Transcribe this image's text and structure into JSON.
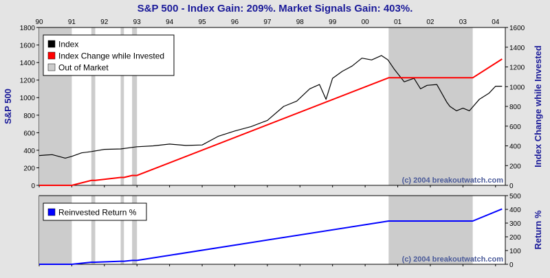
{
  "title": "S&P 500 - Index Gain: 209%. Market Signals Gain: 403%.",
  "watermark": "(c) 2004 breakoutwatch.com",
  "colors": {
    "background": "#e4e4e4",
    "plot": "#ffffff",
    "title": "#1a1a99",
    "axis_label": "#1a1a99",
    "index": "#000000",
    "invested": "#ff0000",
    "out_of_market": "#cccccc",
    "reinvested": "#0000ff",
    "watermark": "#4a5a99"
  },
  "year_ticks": [
    "90",
    "91",
    "92",
    "93",
    "94",
    "95",
    "96",
    "97",
    "98",
    "99",
    "00",
    "01",
    "02",
    "03",
    "04"
  ],
  "chart_data": [
    {
      "type": "line",
      "panel": "top",
      "ylabel_left": "S&P 500",
      "ylabel_right": "Index Change while Invested",
      "ylim_left": [
        0,
        1800
      ],
      "ylim_right": [
        0,
        1600
      ],
      "yticks_left": [
        "0",
        "200",
        "400",
        "600",
        "800",
        "1000",
        "1200",
        "1400",
        "1600",
        "1800"
      ],
      "yticks_right": [
        "0",
        "200",
        "400",
        "600",
        "800",
        "1000",
        "1200",
        "1400",
        "1600"
      ],
      "legend_placement": "top-left",
      "legend": [
        {
          "label": "Index",
          "color": "#000000"
        },
        {
          "label": "Index Change while Invested",
          "color": "#ff0000"
        },
        {
          "label": "Out of Market",
          "color": "#cccccc"
        }
      ],
      "out_of_market_periods": [
        [
          1990.0,
          1991.0
        ],
        [
          1991.6,
          1991.72
        ],
        [
          1992.5,
          1992.6
        ],
        [
          1992.85,
          1993.0
        ],
        [
          2000.72,
          2003.3
        ]
      ],
      "series": [
        {
          "name": "Index",
          "axis": "left",
          "color": "#000000",
          "x": [
            1990.0,
            1990.2,
            1990.4,
            1990.6,
            1990.8,
            1991.0,
            1991.3,
            1991.6,
            1992.0,
            1992.5,
            1993.0,
            1993.5,
            1994.0,
            1994.5,
            1995.0,
            1995.5,
            1996.0,
            1996.5,
            1997.0,
            1997.5,
            1997.9,
            1998.3,
            1998.6,
            1998.8,
            1999.0,
            1999.3,
            1999.6,
            1999.9,
            2000.2,
            2000.5,
            2000.7,
            2000.9,
            2001.2,
            2001.5,
            2001.7,
            2001.9,
            2002.2,
            2002.5,
            2002.6,
            2002.8,
            2003.0,
            2003.2,
            2003.5,
            2003.8,
            2004.0,
            2004.2
          ],
          "values": [
            340,
            345,
            350,
            330,
            310,
            330,
            370,
            385,
            410,
            415,
            440,
            450,
            470,
            455,
            460,
            560,
            620,
            670,
            740,
            900,
            960,
            1100,
            1150,
            980,
            1220,
            1300,
            1360,
            1450,
            1430,
            1480,
            1430,
            1320,
            1180,
            1220,
            1100,
            1140,
            1150,
            950,
            900,
            850,
            880,
            850,
            980,
            1050,
            1130,
            1130
          ]
        },
        {
          "name": "Index Change while Invested",
          "axis": "right",
          "color": "#ff0000",
          "x": [
            1990.0,
            1991.0,
            1991.6,
            1991.72,
            1992.5,
            1992.6,
            1992.85,
            1993.0,
            2000.72,
            2003.3,
            2004.2
          ],
          "values": [
            0,
            0,
            50,
            50,
            80,
            80,
            100,
            100,
            1090,
            1090,
            1280
          ]
        }
      ]
    },
    {
      "type": "line",
      "panel": "bottom",
      "ylabel_right": "Return %",
      "ylim_right": [
        0,
        500
      ],
      "yticks_right": [
        "0",
        "100",
        "200",
        "300",
        "400",
        "500"
      ],
      "legend_placement": "top-left",
      "legend": [
        {
          "label": "Reinvested Return %",
          "color": "#0000ff"
        }
      ],
      "series": [
        {
          "name": "Reinvested Return %",
          "axis": "right",
          "color": "#0000ff",
          "x": [
            1990.0,
            1991.0,
            1991.6,
            1991.72,
            1992.5,
            1992.6,
            1992.85,
            1993.0,
            2000.72,
            2003.3,
            2004.2
          ],
          "values": [
            0,
            0,
            15,
            15,
            22,
            22,
            28,
            28,
            315,
            315,
            403
          ]
        }
      ]
    }
  ]
}
